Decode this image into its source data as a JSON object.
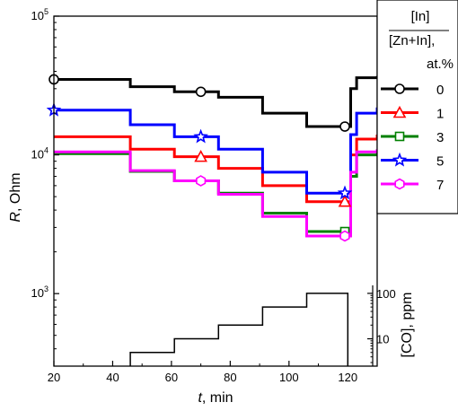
{
  "chart_data": {
    "type": "line",
    "xlabel_italic": "t",
    "xlabel_rest": ", min",
    "ylabel_italic": "R",
    "ylabel_rest": ", Ohm",
    "xlim": [
      20,
      130
    ],
    "ylim": [
      300,
      100000
    ],
    "y_scale": "log",
    "x_ticks": [
      "20",
      "40",
      "60",
      "80",
      "100",
      "120"
    ],
    "x_tick_values": [
      20,
      40,
      60,
      80,
      100,
      120
    ],
    "y_ticks": [
      {
        "base": "10",
        "exp": "3",
        "value": 1000
      },
      {
        "base": "10",
        "exp": "4",
        "value": 10000
      },
      {
        "base": "10",
        "exp": "5",
        "value": 100000
      }
    ],
    "legend": {
      "placement": "top-right",
      "title_line1": "[In]",
      "title_line2": "[Zn+In]",
      "title_line2_suffix": ",",
      "title_line3": "at.%"
    },
    "series": [
      {
        "name": "0",
        "color": "#000000",
        "marker": "circle",
        "x": [
          20,
          46,
          61,
          76,
          91,
          106,
          119.5,
          121,
          123,
          130
        ],
        "y": [
          35000,
          31000,
          28500,
          26000,
          20000,
          16000,
          16000,
          30000,
          36000,
          37000
        ],
        "marker_x": [
          20,
          70,
          119
        ]
      },
      {
        "name": "1",
        "color": "#ff0000",
        "marker": "triangle",
        "x": [
          20,
          46,
          61,
          76,
          91,
          106,
          119.5,
          121,
          123,
          130
        ],
        "y": [
          13500,
          11000,
          9700,
          8000,
          6000,
          4600,
          4600,
          10000,
          13000,
          14000
        ],
        "marker_x": [
          70,
          119
        ]
      },
      {
        "name": "3",
        "color": "#008000",
        "marker": "square",
        "x": [
          20,
          46,
          61,
          76,
          91,
          106,
          119.5,
          121,
          123,
          130
        ],
        "y": [
          10200,
          7600,
          6500,
          5300,
          3800,
          2800,
          2800,
          7000,
          10000,
          10800
        ],
        "marker_x": [
          119
        ]
      },
      {
        "name": "5",
        "color": "#0000ff",
        "marker": "star",
        "x": [
          20,
          46,
          61,
          76,
          91,
          106,
          119.5,
          121,
          123,
          130
        ],
        "y": [
          21000,
          16500,
          13500,
          11000,
          7500,
          5300,
          5300,
          14000,
          20000,
          22000
        ],
        "marker_x": [
          20,
          70,
          119
        ]
      },
      {
        "name": "7",
        "color": "#ff00ff",
        "marker": "hexagon",
        "x": [
          20,
          46,
          61,
          76,
          91,
          106,
          119.5,
          121,
          123,
          130
        ],
        "y": [
          10500,
          7700,
          6500,
          5200,
          3600,
          2600,
          2600,
          7500,
          10500,
          11000
        ],
        "marker_x": [
          70,
          119
        ]
      }
    ],
    "co_axis": {
      "label": "[CO], ppm",
      "ticks": [
        {
          "label": "10",
          "value": 10
        },
        {
          "label": "100",
          "value": 100
        }
      ],
      "range": [
        2.5,
        150
      ],
      "x": [
        46,
        61,
        76,
        91,
        106,
        120
      ],
      "values": [
        5,
        10,
        20,
        50,
        100,
        100
      ]
    }
  }
}
